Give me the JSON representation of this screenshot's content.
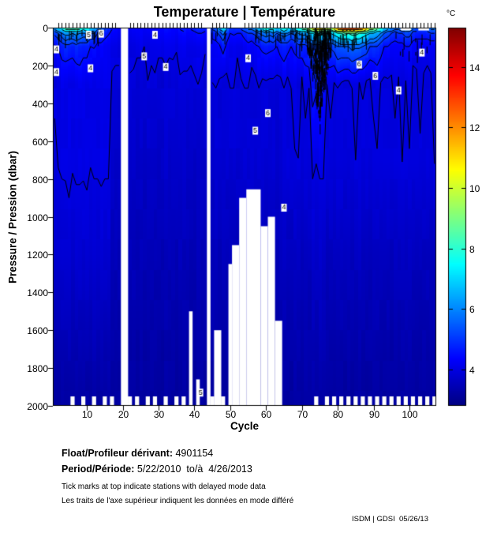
{
  "title": "Temperature | Température",
  "footer": {
    "float_label": "Float/Profileur dérivant:",
    "float_value": " 4901154",
    "period_label": "Period/Période:",
    "period_value": " 5/22/2010  to/à  4/26/2013",
    "note_en": "Tick marks at top indicate stations with delayed mode data",
    "note_fr": "Les traits de l'axe supérieur indiquent les données en mode différé",
    "corner": "ISDM | GDSI  05/26/13"
  },
  "chart_data": {
    "type": "contour-heatmap",
    "title": "Temperature | Température",
    "xlabel": "Cycle",
    "ylabel": "Pressure / Pression (dbar)",
    "x_ticks": [
      10,
      20,
      30,
      40,
      50,
      60,
      70,
      80,
      90,
      100
    ],
    "x_range": [
      1,
      107
    ],
    "y_ticks": [
      0,
      200,
      400,
      600,
      800,
      1000,
      1200,
      1400,
      1600,
      1800,
      2000
    ],
    "y_range": [
      0,
      2000
    ],
    "y_reversed": true,
    "grid": false,
    "colorbar": {
      "label": "°C",
      "ticks": [
        4,
        6,
        8,
        10,
        12,
        14
      ],
      "range": [
        2.8,
        15.3
      ],
      "colormap": "jet"
    },
    "contour_levels": [
      4,
      4.5,
      5,
      5.5,
      6,
      7,
      8,
      9,
      10,
      11,
      12,
      13
    ],
    "contour_labels": [
      {
        "t": "4",
        "c": 1.5,
        "p": 115
      },
      {
        "t": "4",
        "c": 1.5,
        "p": 235
      },
      {
        "t": "4",
        "c": 11,
        "p": 215
      },
      {
        "t": "5",
        "c": 10.5,
        "p": 38
      },
      {
        "t": "6",
        "c": 14,
        "p": 32
      },
      {
        "t": "4",
        "c": 29,
        "p": 38
      },
      {
        "t": "5",
        "c": 26,
        "p": 152
      },
      {
        "t": "4",
        "c": 32,
        "p": 208
      },
      {
        "t": "4",
        "c": 55,
        "p": 162
      },
      {
        "t": "5",
        "c": 57,
        "p": 545
      },
      {
        "t": "6",
        "c": 60.5,
        "p": 452
      },
      {
        "t": "4",
        "c": 65,
        "p": 952
      },
      {
        "t": "6",
        "c": 86,
        "p": 195
      },
      {
        "t": "6",
        "c": 90.5,
        "p": 255
      },
      {
        "t": "4",
        "c": 97,
        "p": 332
      },
      {
        "t": "4",
        "c": 103.5,
        "p": 132
      },
      {
        "t": "5",
        "c": 41.7,
        "p": 1930
      }
    ],
    "field": {
      "control_pressures_dbar": [
        0,
        30,
        100,
        300,
        700,
        1200,
        2000
      ],
      "mixed_layer": {
        "ref": 4.2,
        "p30_base": 4.2,
        "p30_coef": 0.42,
        "p100_base": 4.03,
        "p100_coef": 0.16
      },
      "surface_temp_c": [
        6.5,
        7.2,
        7.6,
        8.6,
        9.0,
        8.6,
        9.0,
        8.4,
        7.8,
        8.2,
        7.2,
        6.6,
        6.0,
        5.5,
        5.1,
        4.8,
        4.6,
        4.5,
        4.4,
        4.3,
        4.3,
        4.3,
        4.4,
        4.3,
        4.2,
        4.3,
        4.4,
        4.3,
        4.2,
        4.3,
        4.4,
        4.5,
        4.4,
        4.3,
        4.4,
        4.5,
        4.6,
        4.5,
        4.6,
        4.8,
        5.0,
        4.8,
        4.8,
        5.0,
        5.2,
        5.5,
        6.5,
        7.4,
        6.0,
        5.1,
        4.9,
        5.1,
        5.3,
        5.6,
        5.9,
        6.1,
        6.6,
        7.1,
        7.6,
        8.4,
        7.6,
        8.1,
        7.1,
        7.6,
        8.1,
        7.6,
        7.1,
        7.6,
        8.1,
        8.6,
        9.2,
        10.1,
        11.2,
        12.1,
        11.6,
        11.1,
        10.6,
        10.1,
        11.1,
        12.6,
        13.6,
        14.1,
        13.6,
        14.1,
        13.6,
        13.1,
        12.6,
        11.6,
        10.1,
        9.6,
        9.1,
        8.1,
        7.1,
        6.6,
        6.1,
        5.6,
        5.9,
        6.1,
        6.6,
        6.1,
        5.6,
        5.3,
        5.1,
        5.3,
        5.6,
        5.9,
        6.1
      ],
      "deep_regions": [
        {
          "cycles": [
            1,
            16
          ],
          "t300": 4.05,
          "t700": 4.02,
          "t1200": 3.78,
          "t2000": 3.2
        },
        {
          "cycles": [
            17,
            45
          ],
          "t300": 3.88,
          "t700": 3.7,
          "t1200": 3.48,
          "t2000": 3.18
        },
        {
          "cycles": [
            46,
            64
          ],
          "t300": 3.92,
          "t700": 3.82,
          "t1200": 3.52,
          "t2000": 3.18
        },
        {
          "cycles": [
            65,
            72
          ],
          "t300": 3.96,
          "t700": 3.93,
          "t1200": 3.58,
          "t2000": 3.2
        },
        {
          "cycles": [
            73,
            76
          ],
          "t300": 4.55,
          "t700": 4.05,
          "t1200": 3.68,
          "t2000": 3.25
        },
        {
          "cycles": [
            77,
            107
          ],
          "t300": 3.97,
          "t700": 3.94,
          "t1200": 3.58,
          "t2000": 3.2
        }
      ]
    },
    "missing_regions": [
      {
        "cycles": [
          20,
          21
        ],
        "pressure": [
          0,
          2000
        ]
      },
      {
        "cycles": [
          44,
          44
        ],
        "pressure": [
          0,
          2000
        ]
      },
      {
        "cycles": [
          39,
          39
        ],
        "pressure": [
          1500,
          2000
        ]
      },
      {
        "cycles": [
          41,
          41
        ],
        "pressure": [
          1860,
          2000
        ]
      },
      {
        "cycles": [
          46,
          47
        ],
        "pressure": [
          1600,
          2000
        ]
      },
      {
        "cycles": [
          50,
          50
        ],
        "pressure": [
          1250,
          2000
        ]
      },
      {
        "cycles": [
          51,
          52
        ],
        "pressure": [
          1150,
          2000
        ]
      },
      {
        "cycles": [
          53,
          54
        ],
        "pressure": [
          900,
          2000
        ]
      },
      {
        "cycles": [
          55,
          58
        ],
        "pressure": [
          855,
          2000
        ]
      },
      {
        "cycles": [
          59,
          60
        ],
        "pressure": [
          1050,
          2000
        ]
      },
      {
        "cycles": [
          61,
          62
        ],
        "pressure": [
          1000,
          2000
        ]
      },
      {
        "cycles": [
          63,
          64
        ],
        "pressure": [
          1550,
          2000
        ]
      },
      {
        "cycles": [
          98,
          100
        ],
        "pressure": [
          0,
          15
        ]
      },
      {
        "cycles": [
          103,
          105
        ],
        "pressure": [
          0,
          15
        ]
      }
    ],
    "bottom_notch_cycles": [
      6,
      9,
      12,
      15,
      17,
      22,
      24,
      27,
      29,
      32,
      35,
      37,
      45,
      48,
      74,
      77,
      79,
      81,
      83,
      85,
      87,
      89,
      91,
      93,
      95,
      97,
      99,
      101,
      103,
      105,
      107
    ],
    "delayed_mode_ticks": {
      "ranges": [
        [
          2,
          18
        ],
        [
          22,
          42
        ],
        [
          45,
          50
        ],
        [
          54,
          107
        ]
      ]
    },
    "dense_contour_patches": [
      {
        "cycles": [
          1,
          13.5
        ],
        "pressure": [
          12,
          45
        ],
        "density": 0.5,
        "taper": false
      },
      {
        "cycles": [
          44,
          50
        ],
        "pressure": [
          2,
          30
        ],
        "density": 0.3,
        "taper": false
      },
      {
        "cycles": [
          56,
          66
        ],
        "pressure": [
          2,
          55
        ],
        "density": 0.3,
        "taper": false
      },
      {
        "cycles": [
          67,
          71.5
        ],
        "pressure": [
          0,
          130
        ],
        "density": 0.3,
        "taper": true
      },
      {
        "cycles": [
          71.5,
          78
        ],
        "pressure": [
          0,
          430
        ],
        "density": 0.6,
        "taper": true
      },
      {
        "cycles": [
          73.5,
          76.5
        ],
        "pressure": [
          0,
          520
        ],
        "density": 0.85,
        "taper": true
      },
      {
        "cycles": [
          78,
          88
        ],
        "pressure": [
          25,
          75
        ],
        "density": 0.35,
        "taper": false
      },
      {
        "cycles": [
          95,
          107
        ],
        "pressure": [
          25,
          130
        ],
        "density": 0.1,
        "taper": false
      }
    ]
  }
}
